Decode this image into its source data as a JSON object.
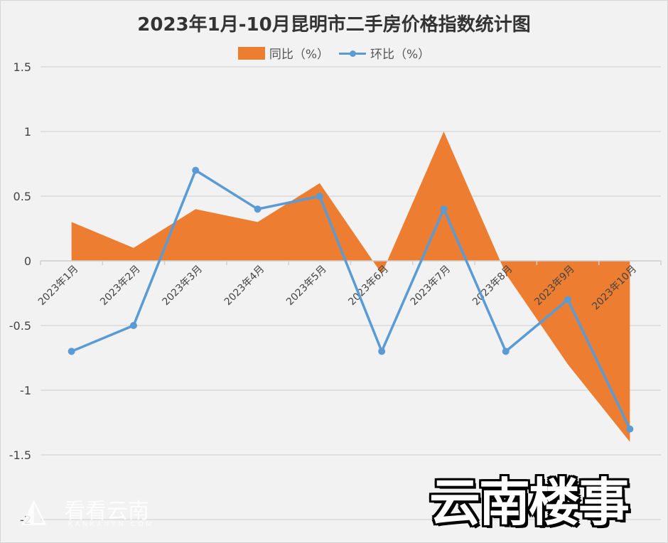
{
  "chart_data": {
    "type": "area+line",
    "title": "2023年1月-10月昆明市二手房价格指数统计图",
    "categories": [
      "2023年1月",
      "2023年2月",
      "2023年3月",
      "2023年4月",
      "2023年5月",
      "2023年6月",
      "2023年7月",
      "2023年8月",
      "2023年9月",
      "2023年10月"
    ],
    "series": [
      {
        "name": "同比（%）",
        "type": "area",
        "color": "#ed7d31",
        "values": [
          0.3,
          0.1,
          0.4,
          0.3,
          0.6,
          -0.1,
          1.0,
          -0.1,
          -0.8,
          -1.4
        ]
      },
      {
        "name": "环比（%）",
        "type": "line",
        "color": "#5b9bd5",
        "values": [
          -0.7,
          -0.5,
          0.7,
          0.4,
          0.5,
          -0.7,
          0.4,
          -0.7,
          -0.3,
          -1.3
        ]
      }
    ],
    "xlabel": "",
    "ylabel": "",
    "ylim": [
      -2,
      1.5
    ],
    "yticks": [
      "1.5",
      "1",
      "0.5",
      "0",
      "-0.5",
      "-1",
      "-1.5",
      "-2"
    ],
    "grid": true,
    "legend_position": "top"
  },
  "legend": {
    "yoy_label": "同比（%）",
    "mom_label": "环比（%）"
  },
  "overlay": {
    "stamp": "云南楼事",
    "watermark_text": "看看云南",
    "watermark_url": "KANKANYN.COM"
  }
}
